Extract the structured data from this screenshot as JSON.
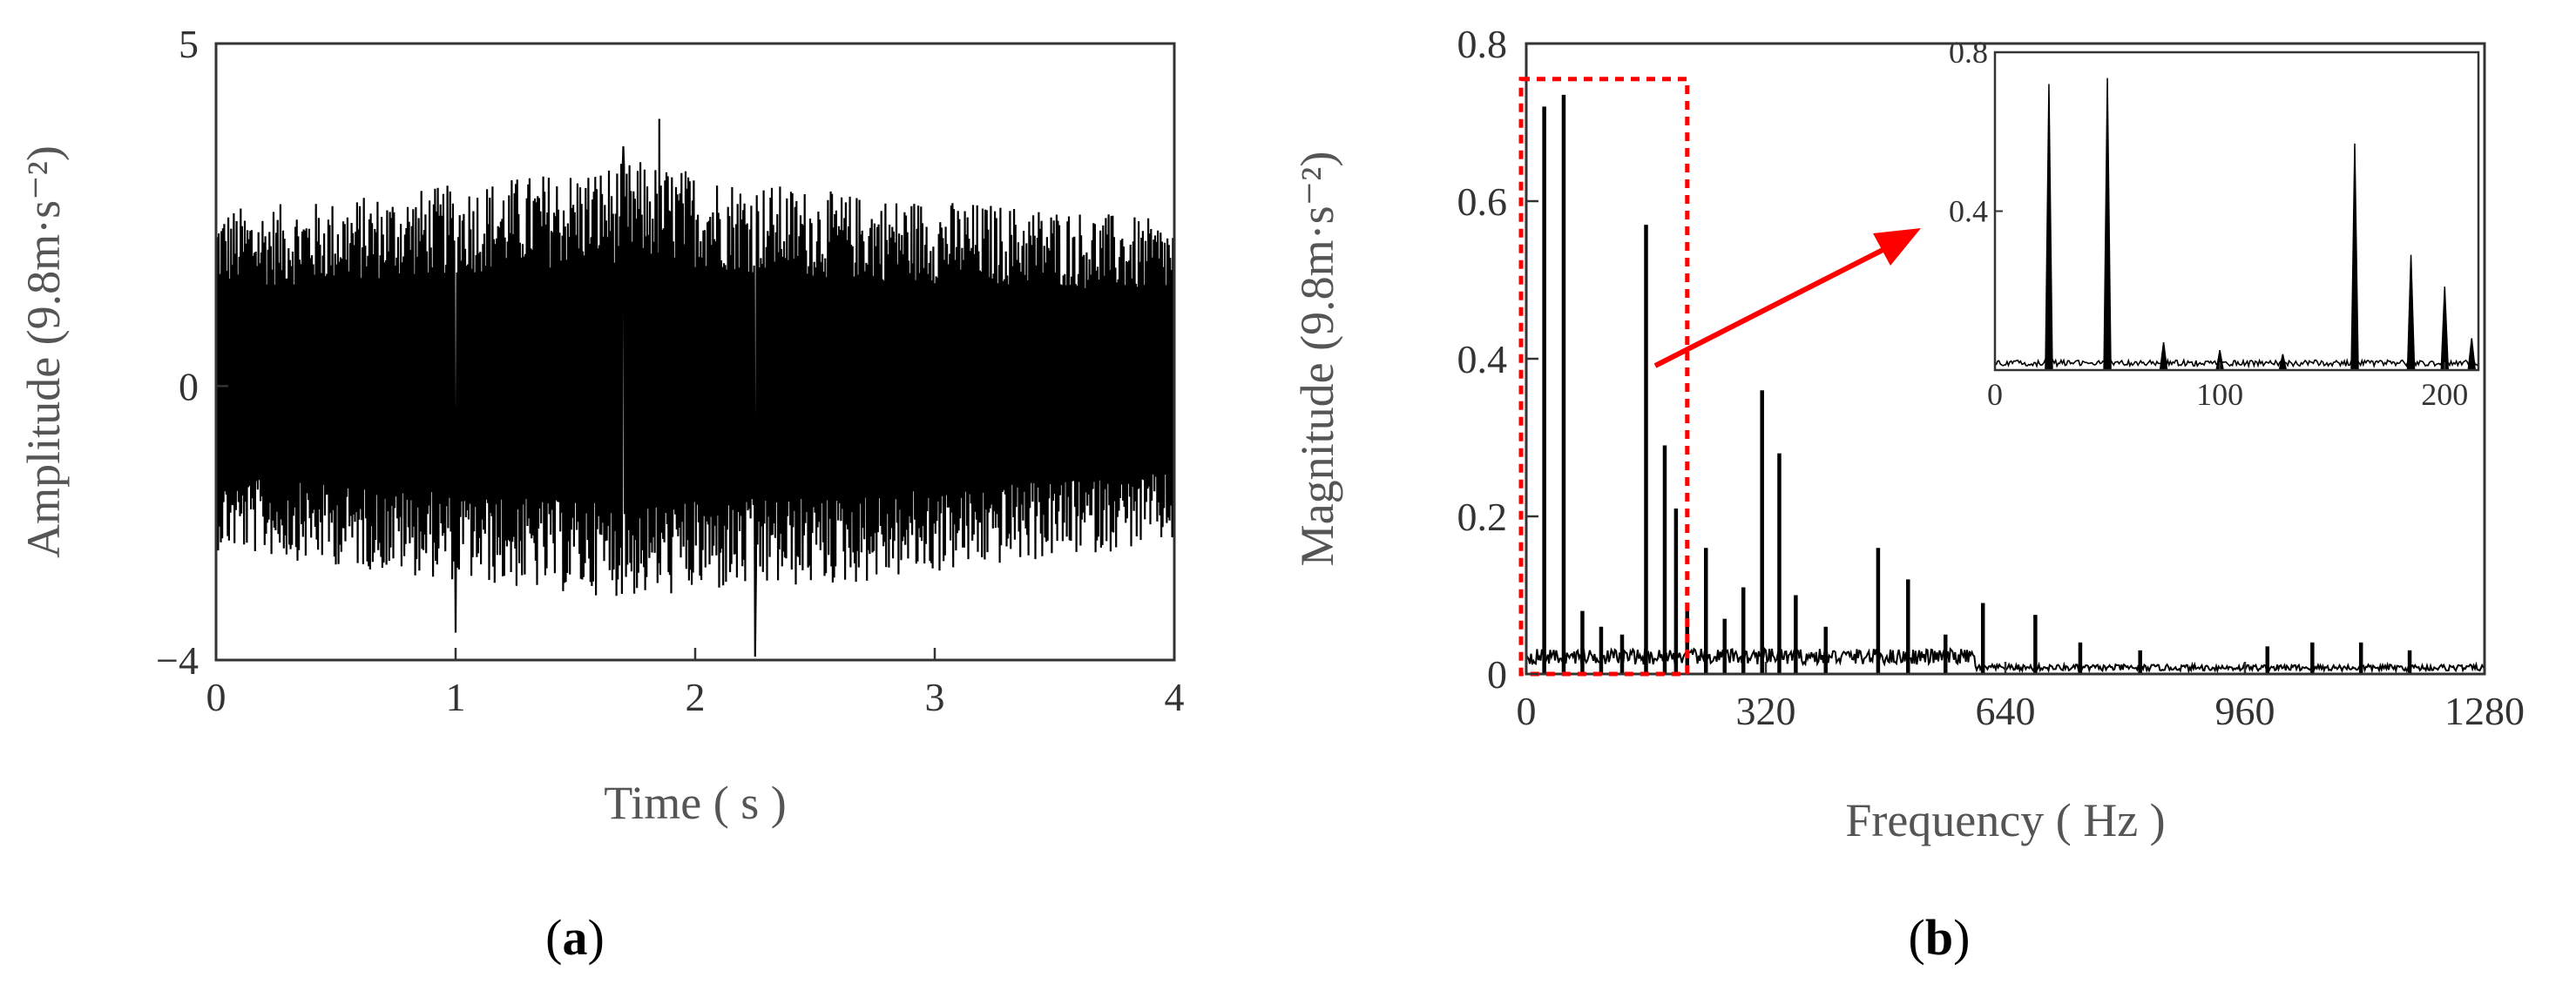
{
  "panels": {
    "a": "a",
    "b": "b"
  },
  "chart_data": [
    {
      "type": "line",
      "panel": "a",
      "xlabel": "Time (s)",
      "ylabel": "Amplitude (9.8m·s⁻²)",
      "xlim": [
        0,
        4
      ],
      "ylim": [
        -4,
        5
      ],
      "xticks": [
        "0",
        "1",
        "2",
        "3",
        "4"
      ],
      "yticks": [
        "−4",
        "0",
        "5"
      ],
      "grid": false,
      "series": [
        {
          "description_values": "dense vibration signal, approx. ±2.5 typical envelope",
          "x_range": [
            0,
            4
          ],
          "envelope_upper": [
            2.6,
            2.7,
            2.9,
            3.1,
            3.3,
            3.0,
            2.8,
            2.7,
            2.6,
            2.4
          ],
          "envelope_lower": [
            -2.4,
            -2.6,
            -2.8,
            -3.0,
            -3.1,
            -3.0,
            -2.9,
            -2.7,
            -2.5,
            -2.3
          ],
          "peaks": [
            {
              "x": 1.85,
              "y": 3.9
            },
            {
              "x": 1.0,
              "y": -3.6
            },
            {
              "x": 2.25,
              "y": -3.95
            },
            {
              "x": 1.7,
              "y": 3.5
            }
          ]
        }
      ]
    },
    {
      "type": "line",
      "panel": "b",
      "xlabel": "Frequency (Hz)",
      "ylabel": "Magnitude (9.8m·s⁻²)",
      "xlim": [
        0,
        1280
      ],
      "ylim": [
        0,
        0.8
      ],
      "xticks": [
        "0",
        "320",
        "640",
        "960",
        "1280"
      ],
      "yticks": [
        "0",
        "0.2",
        "0.4",
        "0.6",
        "0.8"
      ],
      "grid": false,
      "peaks": [
        {
          "x": 24,
          "y": 0.72
        },
        {
          "x": 50,
          "y": 0.735
        },
        {
          "x": 75,
          "y": 0.08
        },
        {
          "x": 100,
          "y": 0.06
        },
        {
          "x": 128,
          "y": 0.05
        },
        {
          "x": 160,
          "y": 0.57
        },
        {
          "x": 185,
          "y": 0.29
        },
        {
          "x": 200,
          "y": 0.21
        },
        {
          "x": 215,
          "y": 0.09
        },
        {
          "x": 240,
          "y": 0.16
        },
        {
          "x": 265,
          "y": 0.07
        },
        {
          "x": 290,
          "y": 0.11
        },
        {
          "x": 315,
          "y": 0.36
        },
        {
          "x": 338,
          "y": 0.28
        },
        {
          "x": 360,
          "y": 0.1
        },
        {
          "x": 400,
          "y": 0.06
        },
        {
          "x": 470,
          "y": 0.16
        },
        {
          "x": 510,
          "y": 0.12
        },
        {
          "x": 560,
          "y": 0.05
        },
        {
          "x": 610,
          "y": 0.09
        },
        {
          "x": 680,
          "y": 0.075
        },
        {
          "x": 740,
          "y": 0.04
        },
        {
          "x": 820,
          "y": 0.03
        },
        {
          "x": 990,
          "y": 0.035
        },
        {
          "x": 1050,
          "y": 0.04
        },
        {
          "x": 1115,
          "y": 0.04
        },
        {
          "x": 1180,
          "y": 0.03
        }
      ],
      "highlight_range_x": [
        0,
        215
      ],
      "inset": {
        "xlim": [
          0,
          215
        ],
        "ylim": [
          0,
          0.8
        ],
        "xticks": [
          "0",
          "100",
          "200"
        ],
        "yticks": [
          "0.4",
          "0.8"
        ],
        "peaks": [
          {
            "x": 24,
            "y": 0.72
          },
          {
            "x": 50,
            "y": 0.735
          },
          {
            "x": 75,
            "y": 0.07
          },
          {
            "x": 100,
            "y": 0.05
          },
          {
            "x": 128,
            "y": 0.04
          },
          {
            "x": 160,
            "y": 0.57
          },
          {
            "x": 185,
            "y": 0.29
          },
          {
            "x": 200,
            "y": 0.21
          },
          {
            "x": 212,
            "y": 0.08
          }
        ]
      }
    }
  ],
  "colors": {
    "signal": "#000000",
    "highlight": "#ff0000"
  }
}
